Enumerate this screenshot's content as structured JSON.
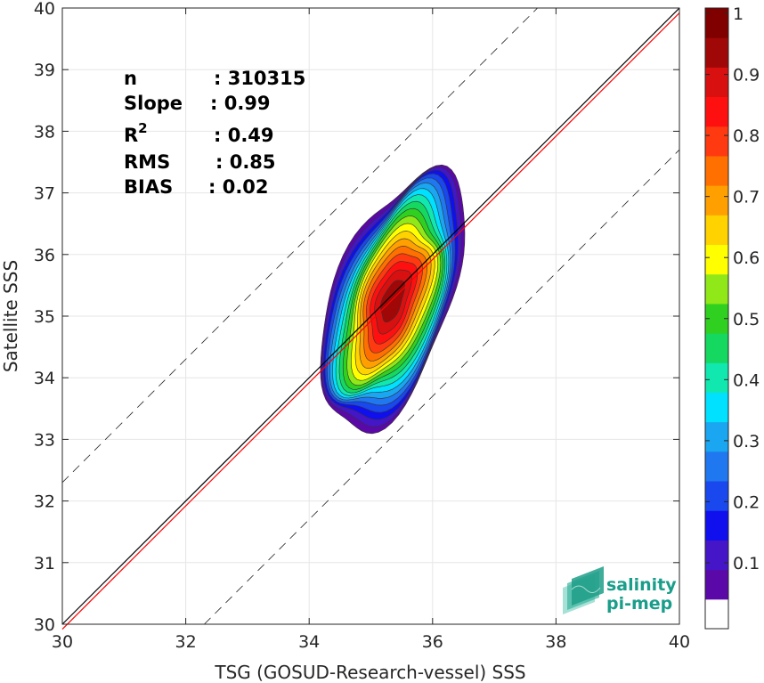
{
  "chart_data": {
    "type": "heatmap",
    "title": "",
    "xlabel": "TSG (GOSUD-Research-vessel) SSS",
    "ylabel": "Satellite SSS",
    "xlim": [
      30,
      40
    ],
    "ylim": [
      30,
      40
    ],
    "xticks": [
      "30",
      "32",
      "34",
      "36",
      "38",
      "40"
    ],
    "yticks": [
      "30",
      "31",
      "32",
      "33",
      "34",
      "35",
      "36",
      "37",
      "38",
      "39",
      "40"
    ],
    "grid": true,
    "stats": [
      {
        "label": "n",
        "value": ": 310315"
      },
      {
        "label": "Slope",
        "value": ": 0.99"
      },
      {
        "label": "R",
        "sup": "2",
        "value": ": 0.49"
      },
      {
        "label": "RMS",
        "value": ": 0.85"
      },
      {
        "label": "BIAS",
        "value": ": 0.02"
      }
    ],
    "lines": [
      {
        "kind": "identity",
        "color": "#000000",
        "x": [
          30,
          40
        ],
        "y": [
          30,
          40
        ]
      },
      {
        "kind": "regression",
        "color": "#ff0000",
        "x": [
          30,
          40
        ],
        "y": [
          29.92,
          39.92
        ]
      },
      {
        "kind": "upper-bound",
        "style": "dashed",
        "x": [
          30,
          37.7
        ],
        "y": [
          32.3,
          40
        ]
      },
      {
        "kind": "lower-bound",
        "style": "dashed",
        "x": [
          32.3,
          40
        ],
        "y": [
          30,
          37.7
        ]
      }
    ],
    "density": {
      "center_x": 35.35,
      "center_y": 35.25,
      "levels": [
        0.05,
        0.1,
        0.15,
        0.2,
        0.25,
        0.3,
        0.35,
        0.4,
        0.45,
        0.5,
        0.55,
        0.6,
        0.65,
        0.7,
        0.75,
        0.8,
        0.85,
        0.9,
        0.95
      ]
    },
    "colorbar": {
      "ticks": [
        "0.1",
        "0.2",
        "0.3",
        "0.4",
        "0.5",
        "0.6",
        "0.7",
        "0.8",
        "0.9",
        "1"
      ],
      "range": [
        0,
        1
      ],
      "colors": [
        "#ffffff",
        "#5b08a8",
        "#4515c8",
        "#1010ee",
        "#1848ee",
        "#1f78f0",
        "#1aa6f0",
        "#00e0ff",
        "#10e8b0",
        "#14d860",
        "#30d020",
        "#90e818",
        "#ffff00",
        "#ffd200",
        "#ffa000",
        "#ff7000",
        "#ff3a10",
        "#ff1010",
        "#d81010",
        "#a00808",
        "#800000"
      ]
    }
  },
  "logo": {
    "line1": "salinity",
    "line2": "pi-mep"
  }
}
